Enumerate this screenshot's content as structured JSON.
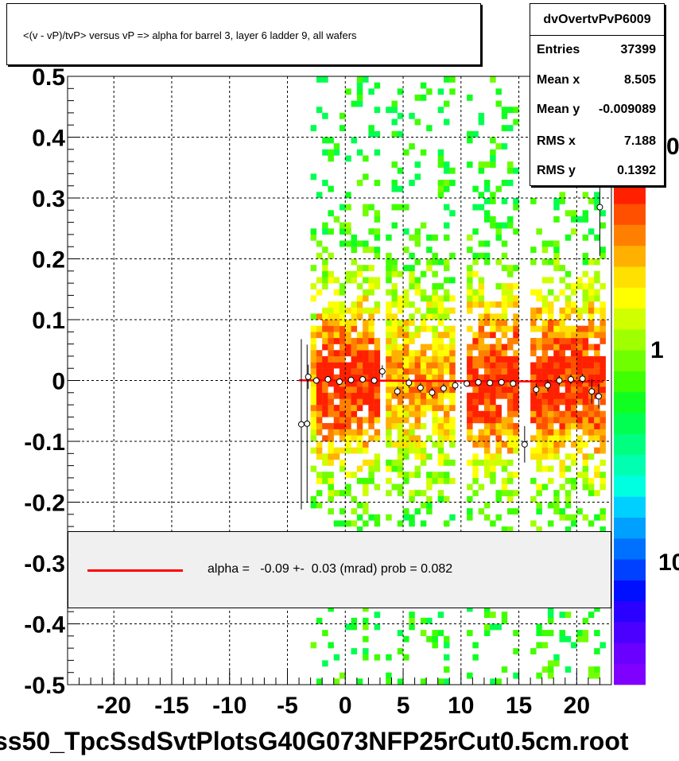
{
  "title": "<(v - vP)/tvP> versus   vP => alpha for barrel 3, layer 6 ladder 9, all wafers",
  "stats": {
    "name": "dvOvertvPvP6009",
    "rows": [
      {
        "label": "Entries",
        "value": "37399"
      },
      {
        "label": "Mean x",
        "value": "8.505"
      },
      {
        "label": "Mean y",
        "value": "-0.009089"
      },
      {
        "label": "RMS x",
        "value": "7.188"
      },
      {
        "label": "RMS y",
        "value": "0.1392"
      }
    ]
  },
  "fit_legend": {
    "text": "alpha =   -0.09 +-  0.03 (mrad) prob = 0.082",
    "line_color": "#ff0000"
  },
  "footer": "ss50_TpcSsdSvtPlotsG40G073NFP25rCut0.5cm.root",
  "colors": {
    "fit_line": "#ff0000",
    "profile_point": "#ffffff",
    "grid": "#000000"
  },
  "chart_data": {
    "type": "heatmap",
    "title": "<(v - vP)/tvP> versus   vP => alpha for barrel 3, layer 6 ladder 9, all wafers",
    "xlim": [
      -24,
      23
    ],
    "ylim": [
      -0.5,
      0.5
    ],
    "x_ticks": [
      "-20",
      "-15",
      "-10",
      "-5",
      "0",
      "5",
      "10",
      "15",
      "20"
    ],
    "y_ticks": [
      "0.5",
      "0.4",
      "0.3",
      "0.2",
      "0.1",
      "0",
      "-0.1",
      "-0.2",
      "-0.3",
      "-0.4",
      "-0.5"
    ],
    "z_ticks_visible": [
      "0",
      "1",
      "10"
    ],
    "z_scale": "log",
    "grid": true,
    "populated_x_range": [
      -3,
      22.3
    ],
    "fit": {
      "slope": -0.09,
      "intercept": 0.0,
      "x_range": [
        -4,
        22.3
      ]
    },
    "profile_points": [
      {
        "x": -3.8,
        "y": -0.072,
        "err": 0.14
      },
      {
        "x": -3.3,
        "y": -0.071,
        "err": 0.13
      },
      {
        "x": -3.2,
        "y": 0.006,
        "err": 0.02
      },
      {
        "x": -2.5,
        "y": 0.0,
        "err": 0.005
      },
      {
        "x": -1.5,
        "y": 0.002,
        "err": 0.005
      },
      {
        "x": -0.5,
        "y": -0.002,
        "err": 0.005
      },
      {
        "x": 0.5,
        "y": 0.001,
        "err": 0.005
      },
      {
        "x": 1.5,
        "y": 0.002,
        "err": 0.005
      },
      {
        "x": 2.5,
        "y": 0.0,
        "err": 0.005
      },
      {
        "x": 3.2,
        "y": 0.015,
        "err": 0.01
      },
      {
        "x": 4.5,
        "y": -0.018,
        "err": 0.008
      },
      {
        "x": 5.5,
        "y": -0.004,
        "err": 0.008
      },
      {
        "x": 6.5,
        "y": -0.012,
        "err": 0.008
      },
      {
        "x": 7.5,
        "y": -0.02,
        "err": 0.008
      },
      {
        "x": 8.5,
        "y": -0.013,
        "err": 0.008
      },
      {
        "x": 9.5,
        "y": -0.008,
        "err": 0.008
      },
      {
        "x": 10.5,
        "y": -0.005,
        "err": 0.005
      },
      {
        "x": 11.5,
        "y": -0.003,
        "err": 0.005
      },
      {
        "x": 12.5,
        "y": -0.004,
        "err": 0.005
      },
      {
        "x": 13.5,
        "y": -0.003,
        "err": 0.005
      },
      {
        "x": 14.5,
        "y": -0.005,
        "err": 0.005
      },
      {
        "x": 15.5,
        "y": -0.105,
        "err": 0.03
      },
      {
        "x": 16.5,
        "y": -0.015,
        "err": 0.01
      },
      {
        "x": 17.5,
        "y": -0.008,
        "err": 0.01
      },
      {
        "x": 18.5,
        "y": 0.0,
        "err": 0.008
      },
      {
        "x": 19.5,
        "y": 0.002,
        "err": 0.008
      },
      {
        "x": 20.5,
        "y": 0.003,
        "err": 0.008
      },
      {
        "x": 21.3,
        "y": -0.018,
        "err": 0.02
      },
      {
        "x": 21.9,
        "y": -0.026,
        "err": 0.02
      },
      {
        "x": 22.0,
        "y": 0.285,
        "err": 0.08
      }
    ]
  }
}
